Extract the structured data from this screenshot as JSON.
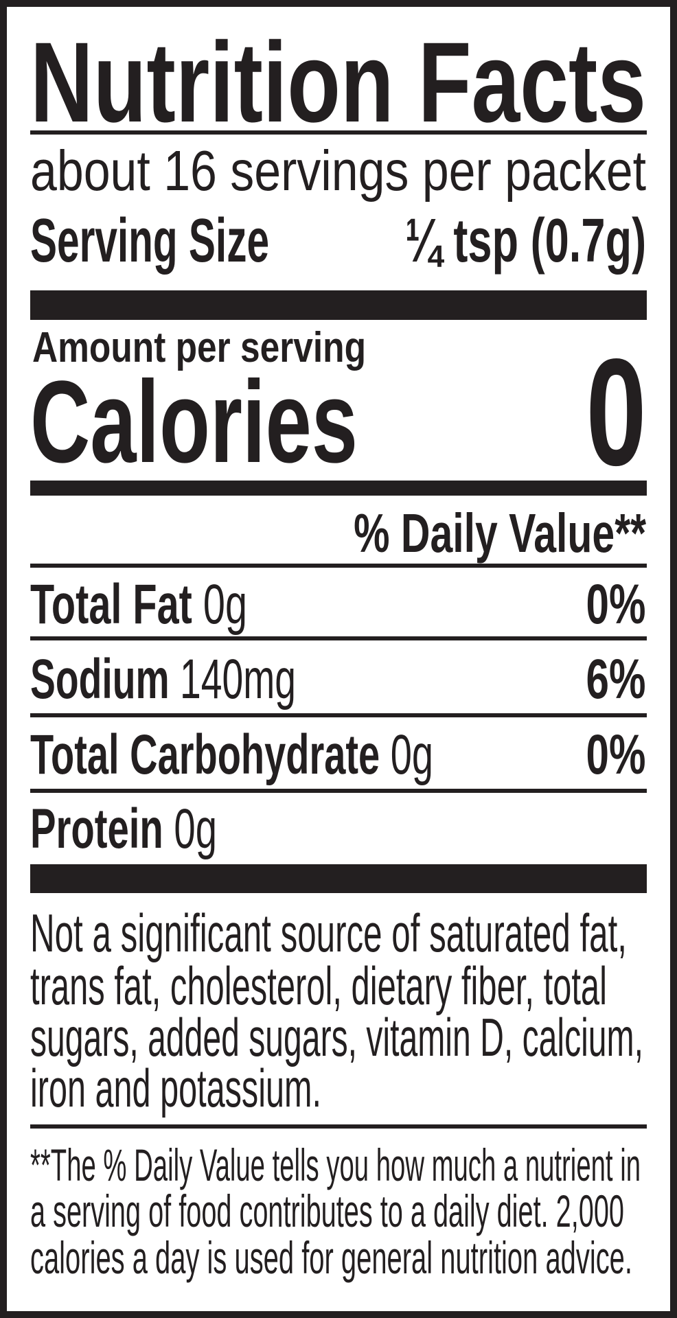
{
  "label": {
    "title": "Nutrition Facts",
    "servings_per_container": "about 16 servings per packet",
    "serving_size": {
      "label": "Serving Size",
      "value": "¼ tsp (0.7g)"
    },
    "amount_per_serving": "Amount per serving",
    "calories": {
      "label": "Calories",
      "value": "0"
    },
    "daily_value_header": "% Daily Value**",
    "nutrients": [
      {
        "name": "Total Fat",
        "amount": "0g",
        "dv": "0%"
      },
      {
        "name": "Sodium",
        "amount": "140mg",
        "dv": "6%"
      },
      {
        "name": "Total Carbohydrate",
        "amount": "0g",
        "dv": "0%"
      },
      {
        "name": "Protein",
        "amount": "0g",
        "dv": ""
      }
    ],
    "not_significant_lines": [
      "Not a significant source of saturated fat,",
      "trans fat, cholesterol, dietary fiber, total",
      "sugars, added sugars, vitamin D, calcium,",
      "iron and potassium."
    ],
    "footnote_lines": [
      "**The % Daily Value tells you how much a nutrient in",
      "a serving of food contributes to a daily diet. 2,000",
      "calories a day is used for general nutrition advice."
    ]
  }
}
